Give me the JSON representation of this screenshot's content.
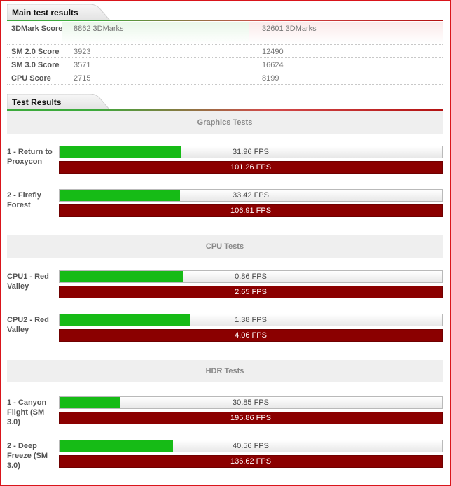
{
  "main_results": {
    "title": "Main test results",
    "rows": [
      {
        "label": "3DMark Score",
        "value1": "8862 3DMarks",
        "value2": "32601 3DMarks"
      },
      {
        "label": "SM 2.0 Score",
        "value1": "3923",
        "value2": "12490"
      },
      {
        "label": "SM 3.0 Score",
        "value1": "3571",
        "value2": "16624"
      },
      {
        "label": "CPU Score",
        "value1": "2715",
        "value2": "8199"
      }
    ]
  },
  "test_results": {
    "title": "Test Results",
    "sections": [
      {
        "title": "Graphics Tests",
        "tests": [
          {
            "name": "1 - Return to Proxycon",
            "fps1": "31.96 FPS",
            "fps1_fraction": 0.318,
            "fps2": "101.26 FPS"
          },
          {
            "name": "2 - Firefly Forest",
            "fps1": "33.42 FPS",
            "fps1_fraction": 0.315,
            "fps2": "106.91 FPS"
          }
        ]
      },
      {
        "title": "CPU Tests",
        "tests": [
          {
            "name": "CPU1 - Red Valley",
            "fps1": "0.86 FPS",
            "fps1_fraction": 0.325,
            "fps2": "2.65 FPS"
          },
          {
            "name": "CPU2 - Red Valley",
            "fps1": "1.38 FPS",
            "fps1_fraction": 0.34,
            "fps2": "4.06 FPS"
          }
        ]
      },
      {
        "title": "HDR Tests",
        "tests": [
          {
            "name": "1 - Canyon Flight (SM 3.0)",
            "fps1": "30.85 FPS",
            "fps1_fraction": 0.16,
            "fps2": "195.86 FPS"
          },
          {
            "name": "2 - Deep Freeze (SM 3.0)",
            "fps1": "40.56 FPS",
            "fps1_fraction": 0.297,
            "fps2": "136.62 FPS"
          }
        ]
      }
    ]
  },
  "colors": {
    "green_bar": "#16bb16",
    "red_bar": "#8b0000",
    "frame": "#d9151b"
  }
}
